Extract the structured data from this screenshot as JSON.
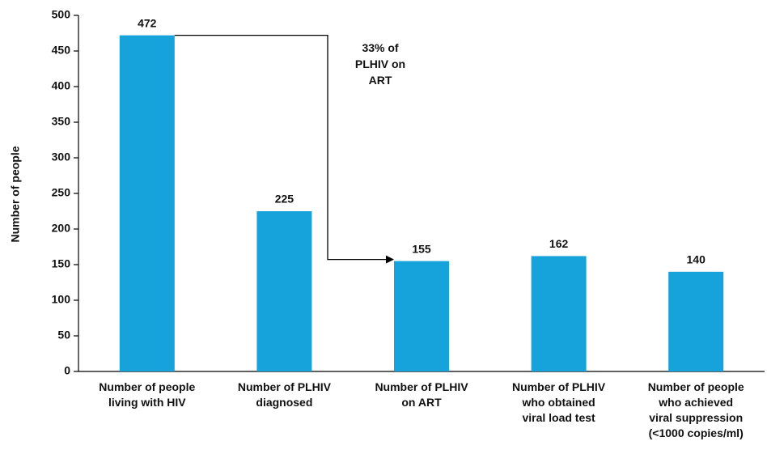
{
  "chart_data": {
    "type": "bar",
    "y_label": "Number of people",
    "categories": [
      "Number of people\nliving with HIV",
      "Number of PLHIV\ndiagnosed",
      "Number of PLHIV\non ART",
      "Number of PLHIV\nwho obtained\nviral load test",
      "Number of people\nwho achieved\nviral suppression\n(<1000 copies/ml)"
    ],
    "values": [
      472,
      225,
      155,
      162,
      140
    ],
    "color": "#16a3dc",
    "ylim": [
      0,
      500
    ],
    "yticks": [
      0,
      50,
      100,
      150,
      200,
      250,
      300,
      350,
      400,
      450,
      500
    ],
    "grid": false,
    "annotation": "33% of\nPLHIV on\nART"
  }
}
